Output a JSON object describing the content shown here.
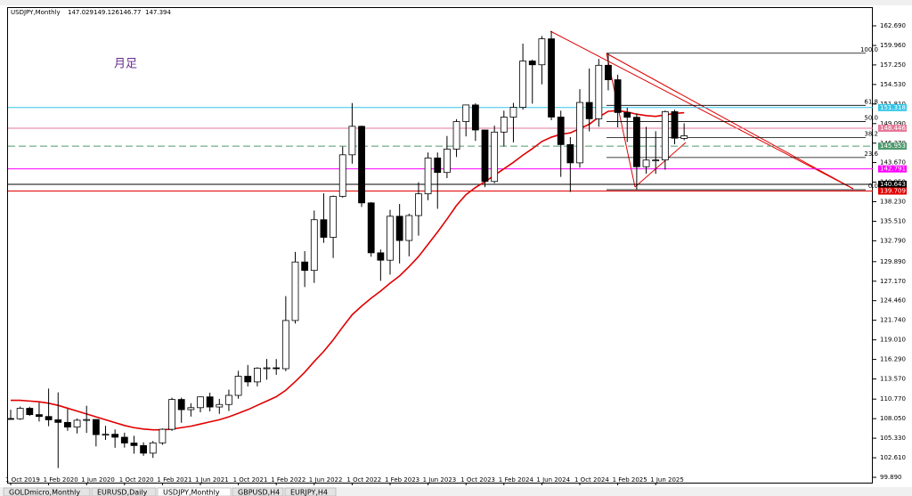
{
  "chart_data": {
    "type": "candlestick",
    "title": "USDJPY,Monthly",
    "annotation": "月足",
    "categories": [
      "1 Oct 2019",
      null,
      null,
      null,
      "1 Feb 2020",
      null,
      null,
      null,
      "1 Jun 2020",
      null,
      null,
      null,
      "1 Oct 2020",
      null,
      null,
      null,
      "1 Feb 2021",
      null,
      null,
      null,
      "1 Jun 2021",
      null,
      null,
      null,
      "1 Oct 2021",
      null,
      null,
      null,
      "1 Feb 2022",
      null,
      null,
      null,
      "1 Jun 2022",
      null,
      null,
      null,
      "1 Oct 2022",
      null,
      null,
      null,
      "1 Feb 2023",
      null,
      null,
      null,
      "1 Jun 2023",
      null,
      null,
      null,
      "1 Oct 2023",
      null,
      null,
      null,
      "1 Feb 2024",
      null,
      null,
      null,
      "1 Jun 2024",
      null,
      null,
      null,
      "1 Oct 2024",
      null,
      null,
      null,
      "1 Feb 2025",
      null,
      null,
      null,
      "1 Jun 2025",
      null,
      null,
      null
    ],
    "open": [
      108.07,
      108.03,
      109.49,
      108.61,
      108.35,
      107.89,
      107.53,
      106.88,
      107.83,
      107.93,
      105.83,
      105.88,
      105.47,
      104.66,
      104.31,
      103.25,
      104.68,
      106.57,
      110.72,
      109.3,
      109.58,
      111.08,
      109.67,
      110.02,
      111.29,
      113.95,
      113.16,
      115.08,
      115.12,
      115.0,
      121.7,
      129.84,
      128.67,
      135.72,
      133.27,
      138.96,
      144.75,
      148.71,
      138.06,
      131.12,
      130.09,
      136.2,
      132.83,
      136.3,
      139.32,
      144.31,
      142.29,
      145.54,
      149.37,
      151.68,
      148.2,
      141.04,
      147.91,
      149.99,
      151.35,
      157.79,
      157.27,
      160.88,
      150.0,
      146.17,
      143.63,
      152.03,
      149.76,
      157.2,
      155.19,
      150.63,
      149.97,
      143.09,
      144.02,
      144.03,
      150.75,
      147.029
    ],
    "high": [
      109.29,
      109.73,
      109.7,
      110.29,
      112.23,
      111.71,
      109.38,
      108.08,
      109.85,
      107.98,
      107.05,
      106.55,
      106.1,
      105.67,
      104.76,
      104.94,
      106.69,
      110.97,
      110.97,
      110.2,
      111.11,
      111.66,
      110.8,
      112.08,
      114.7,
      115.52,
      115.21,
      116.35,
      116.34,
      125.09,
      131.25,
      131.35,
      137.0,
      139.39,
      139.08,
      145.9,
      151.95,
      148.82,
      138.18,
      131.58,
      137.1,
      137.91,
      136.56,
      140.93,
      145.07,
      145.07,
      147.37,
      149.71,
      151.72,
      151.91,
      148.22,
      148.81,
      150.89,
      151.97,
      160.21,
      157.99,
      161.27,
      161.95,
      150.89,
      147.21,
      153.88,
      156.75,
      158.08,
      158.88,
      155.89,
      151.3,
      150.49,
      148.65,
      148.03,
      150.91,
      151.01,
      149.126
    ],
    "low": [
      107.89,
      107.89,
      108.43,
      107.65,
      107.0,
      101.18,
      106.36,
      105.99,
      106.07,
      104.19,
      105.1,
      104.0,
      104.02,
      103.18,
      102.88,
      102.59,
      104.41,
      106.36,
      107.48,
      108.34,
      108.94,
      109.06,
      108.72,
      109.11,
      110.82,
      112.53,
      112.55,
      113.47,
      114.15,
      114.65,
      121.28,
      126.36,
      126.93,
      132.5,
      130.4,
      138.77,
      143.52,
      137.5,
      130.57,
      127.22,
      128.08,
      129.64,
      130.63,
      133.5,
      138.43,
      137.24,
      141.51,
      144.44,
      147.31,
      146.68,
      140.25,
      140.81,
      145.9,
      146.48,
      151.03,
      151.86,
      154.55,
      149.57,
      141.68,
      139.58,
      142.97,
      148.01,
      148.65,
      153.72,
      148.57,
      146.54,
      139.89,
      142.12,
      142.11,
      142.68,
      146.22,
      146.77
    ],
    "close": [
      108.03,
      109.49,
      108.61,
      108.35,
      107.89,
      107.53,
      106.88,
      107.83,
      107.93,
      105.83,
      105.88,
      105.47,
      104.66,
      104.31,
      103.25,
      104.68,
      106.57,
      110.72,
      109.3,
      109.58,
      111.08,
      109.67,
      110.02,
      111.29,
      113.95,
      113.16,
      115.08,
      115.12,
      115.0,
      121.7,
      129.84,
      128.67,
      135.72,
      133.27,
      138.96,
      144.75,
      148.71,
      138.06,
      131.12,
      130.09,
      136.2,
      132.83,
      136.3,
      139.32,
      144.31,
      142.29,
      145.54,
      149.37,
      151.68,
      148.2,
      141.04,
      147.91,
      149.99,
      151.35,
      157.79,
      157.27,
      160.88,
      150.0,
      146.17,
      143.63,
      152.03,
      149.76,
      157.2,
      155.19,
      150.63,
      149.97,
      143.09,
      144.02,
      144.03,
      150.75,
      147.06,
      147.394
    ],
    "ma": {
      "color": "#e00000",
      "values": [
        110.6,
        110.6,
        110.5,
        110.4,
        110.2,
        109.9,
        109.5,
        109.1,
        108.7,
        108.3,
        107.9,
        107.5,
        107.1,
        106.8,
        106.6,
        106.5,
        106.5,
        106.6,
        106.8,
        107.0,
        107.3,
        107.6,
        107.9,
        108.3,
        108.8,
        109.3,
        109.9,
        110.5,
        111.1,
        112.0,
        113.2,
        114.5,
        116.0,
        117.4,
        119.0,
        120.8,
        122.5,
        123.7,
        124.8,
        125.8,
        126.9,
        127.9,
        129.2,
        130.6,
        132.3,
        134.0,
        135.8,
        137.7,
        139.2,
        140.2,
        141.0,
        141.9,
        142.8,
        143.7,
        144.7,
        145.6,
        146.6,
        147.2,
        147.6,
        147.8,
        148.4,
        149.0,
        150.0,
        150.8,
        150.9,
        150.7,
        150.4,
        150.2,
        150.1,
        150.3,
        150.5,
        150.6
      ]
    },
    "ylim": [
      99.15,
      165.29
    ],
    "yticks": [
      {
        "value": 162.69,
        "label": "162.690"
      },
      {
        "value": 159.96,
        "label": "159.960"
      },
      {
        "value": 157.25,
        "label": "157.250"
      },
      {
        "value": 154.53,
        "label": "154.530"
      },
      {
        "value": 151.81,
        "label": "151.810"
      },
      {
        "value": 149.09,
        "label": "149.090"
      },
      {
        "value": 146.37,
        "label": "146.370"
      },
      {
        "value": 143.67,
        "label": "143.670"
      },
      {
        "value": 140.95,
        "label": "140.950"
      },
      {
        "value": 138.23,
        "label": "138.230"
      },
      {
        "value": 135.51,
        "label": "135.510"
      },
      {
        "value": 132.79,
        "label": "132.790"
      },
      {
        "value": 129.89,
        "label": "129.890"
      },
      {
        "value": 127.17,
        "label": "127.170"
      },
      {
        "value": 124.46,
        "label": "124.460"
      },
      {
        "value": 121.74,
        "label": "121.740"
      },
      {
        "value": 119.01,
        "label": "119.010"
      },
      {
        "value": 116.29,
        "label": "116.290"
      },
      {
        "value": 113.57,
        "label": "113.570"
      },
      {
        "value": 110.77,
        "label": "110.770"
      },
      {
        "value": 108.05,
        "label": "108.050"
      },
      {
        "value": 105.33,
        "label": "105.330"
      },
      {
        "value": 102.61,
        "label": "102.610"
      },
      {
        "value": 99.89,
        "label": "99.890"
      }
    ],
    "price_lines": [
      {
        "value": 151.318,
        "color": "#33c6e8",
        "dash": false
      },
      {
        "value": 148.446,
        "color": "#e67a9a",
        "dash": false
      },
      {
        "value": 145.953,
        "color": "#4d9a6e",
        "dash": true
      },
      {
        "value": 142.791,
        "color": "#ff00ff",
        "dash": false
      },
      {
        "value": 140.643,
        "color": "#000000",
        "dash": false
      },
      {
        "value": 139.709,
        "color": "#e00000",
        "dash": false
      }
    ],
    "fib": {
      "low": 139.89,
      "high": 158.88,
      "levels": [
        {
          "value": 0,
          "label": "0.0"
        },
        23.6,
        38.2,
        {
          "value": 50,
          "label": "50.0"
        },
        61.8,
        {
          "value": 100,
          "label": "100.0"
        }
      ]
    },
    "tabs": [
      "GOLDmicro,Monthly",
      "EURUSD,Daily",
      "USDJPY,Monthly",
      "GBPUSD,H4",
      "EURJPY,H4"
    ]
  }
}
